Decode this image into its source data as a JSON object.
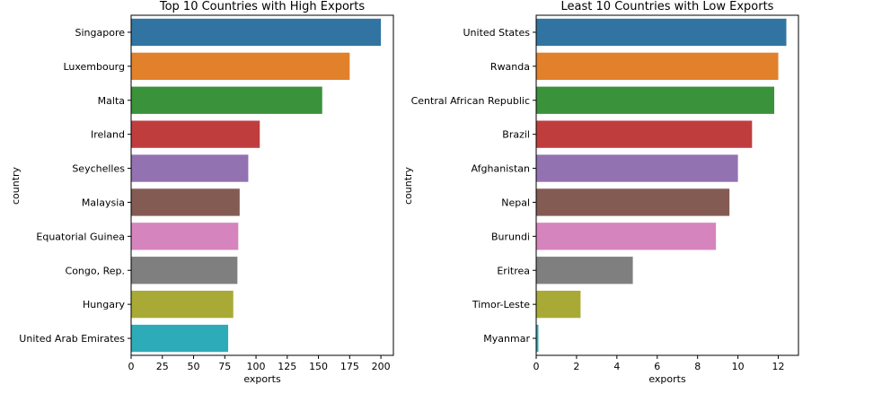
{
  "chart_data": [
    {
      "type": "bar",
      "orientation": "horizontal",
      "title": "Top 10 Countries with High Exports",
      "xlabel": "exports",
      "ylabel": "country",
      "xlim": [
        0,
        210
      ],
      "xticks": [
        0,
        25,
        50,
        75,
        100,
        125,
        150,
        175,
        200
      ],
      "grid": false,
      "categories": [
        "Singapore",
        "Luxembourg",
        "Malta",
        "Ireland",
        "Seychelles",
        "Malaysia",
        "Equatorial Guinea",
        "Congo, Rep.",
        "Hungary",
        "United Arab Emirates"
      ],
      "values": [
        200,
        175,
        153,
        103,
        93.8,
        86.9,
        85.8,
        85.1,
        81.8,
        77.7
      ],
      "colors": [
        "#3274a1",
        "#e1812c",
        "#3a923a",
        "#c03d3e",
        "#9372b2",
        "#845b53",
        "#d684bd",
        "#7f7f7f",
        "#a9aa35",
        "#2eabb8"
      ]
    },
    {
      "type": "bar",
      "orientation": "horizontal",
      "title": "Least 10 Countries with Low Exports",
      "xlabel": "exports",
      "ylabel": "country",
      "xlim": [
        0,
        13
      ],
      "xticks": [
        0,
        2,
        4,
        6,
        8,
        10,
        12
      ],
      "grid": false,
      "categories": [
        "United States",
        "Rwanda",
        "Central African Republic",
        "Brazil",
        "Afghanistan",
        "Nepal",
        "Burundi",
        "Eritrea",
        "Timor-Leste",
        "Myanmar"
      ],
      "values": [
        12.4,
        12.0,
        11.8,
        10.7,
        10.0,
        9.58,
        8.91,
        4.79,
        2.2,
        0.109
      ],
      "colors": [
        "#3274a1",
        "#e1812c",
        "#3a923a",
        "#c03d3e",
        "#9372b2",
        "#845b53",
        "#d684bd",
        "#7f7f7f",
        "#a9aa35",
        "#2eabb8"
      ]
    }
  ]
}
